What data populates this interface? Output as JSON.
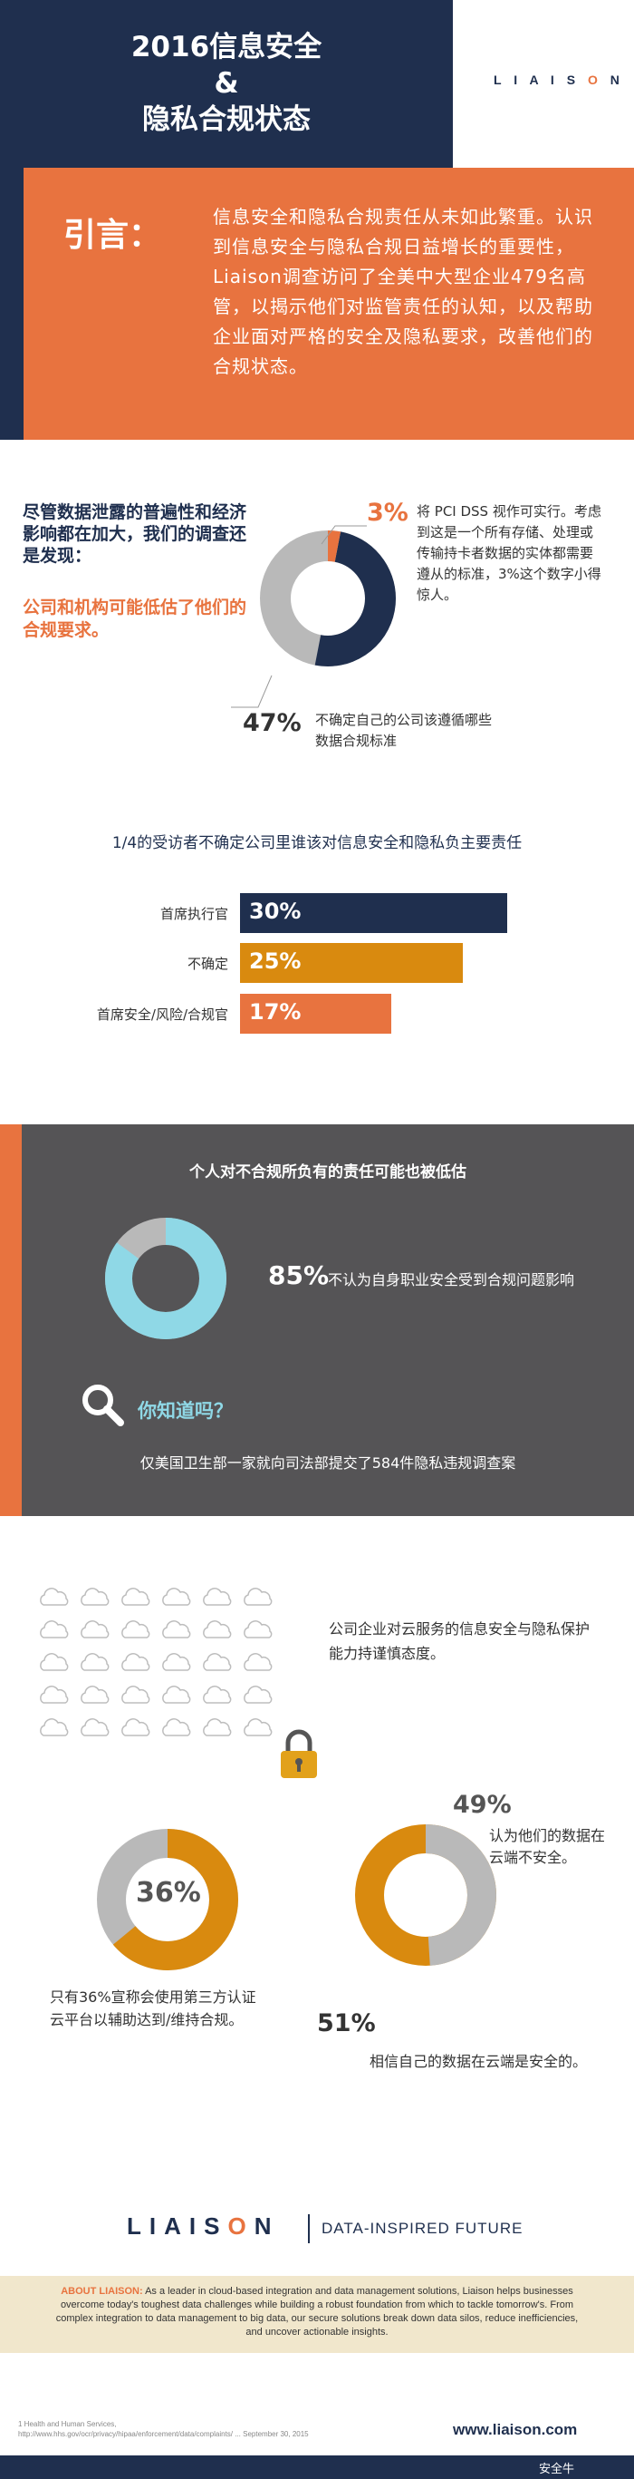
{
  "header": {
    "title_line1": "2016信息安全",
    "title_line2": "&",
    "title_line3": "隐私合规状态",
    "logo": "LIAISON"
  },
  "intro": {
    "label": "引言：",
    "text": "信息安全和隐私合规责任从未如此繁重。认识到信息安全与隐私合规日益增长的重要性，Liaison调查访问了全美中大型企业479名高管，以揭示他们对监管责任的认知，以及帮助企业面对严格的安全及隐私要求，改善他们的合规状态。"
  },
  "section1": {
    "lead": "尽管数据泄露的普遍性和经济影响都在加大，我们的调查还是发现：",
    "highlight": "公司和机构可能低估了他们的合规要求。",
    "stat_a": {
      "value": "3%",
      "text": "将 PCI DSS 视作可实行。考虑到这是一个所有存储、处理或传输持卡者数据的实体都需要遵从的标准，3%这个数字小得惊人。"
    },
    "stat_b": {
      "value": "47%",
      "text": "不确定自己的公司该遵循哪些数据合规标准"
    },
    "donut": {
      "highlight_fraction": 0.03,
      "grey_fraction": 0.47
    }
  },
  "section2": {
    "title": "1/4的受访者不确定公司里谁该对信息安全和隐私负主要责任",
    "bars": [
      {
        "label": "首席执行官",
        "value": "30%",
        "fraction": 0.3,
        "color": "#1f2f4e"
      },
      {
        "label": "不确定",
        "value": "25%",
        "fraction": 0.25,
        "color": "#d98a0f"
      },
      {
        "label": "首席安全/风险/合规官",
        "value": "17%",
        "fraction": 0.17,
        "color": "#e8733f"
      }
    ]
  },
  "section3": {
    "title": "个人对不合规所负有的责任可能也被低估",
    "stat": {
      "value": "85%",
      "text": "不认为自身职业安全受到合规问题影响",
      "fraction": 0.85
    },
    "did_you_know": "你知道吗？",
    "fact": "仅美国卫生部一家就向司法部提交了584件隐私违规调查案"
  },
  "section4": {
    "intro": "公司企业对云服务的信息安全与隐私保护能力持谨慎态度。",
    "stat_36": {
      "value": "36%",
      "text": "只有36%宣称会使用第三方认证云平台以辅助达到/维持合规。",
      "fraction": 0.36
    },
    "stat_49": {
      "value": "49%",
      "text": "认为他们的数据在云端不安全。",
      "fraction": 0.49
    },
    "stat_51": {
      "value": "51%",
      "text": "相信自己的数据在云端是安全的。"
    }
  },
  "footer": {
    "brand": "LIAISON",
    "tagline": "DATA-INSPIRED FUTURE",
    "about_head": "ABOUT LIAISON:",
    "about_text": "As a leader in cloud-based integration and data management solutions, Liaison helps businesses overcome today's toughest data challenges while building a robust foundation from which to tackle tomorrow's. From complex integration to data management to big data, our secure solutions break down data silos, reduce inefficiencies, and uncover actionable insights.",
    "note": "1 Health and Human Services, http://www.hhs.gov/ocr/privacy/hipaa/enforcement/data/complaints/ ... September 30, 2015",
    "url": "www.liaison.com",
    "watermark": "安全牛"
  },
  "colors": {
    "navy": "#1f2f4e",
    "orange": "#e8733f",
    "gold": "#d98a0f",
    "grey_panel": "#555456",
    "cyan": "#8fd8e6",
    "light_grey": "#b9b9b9"
  }
}
